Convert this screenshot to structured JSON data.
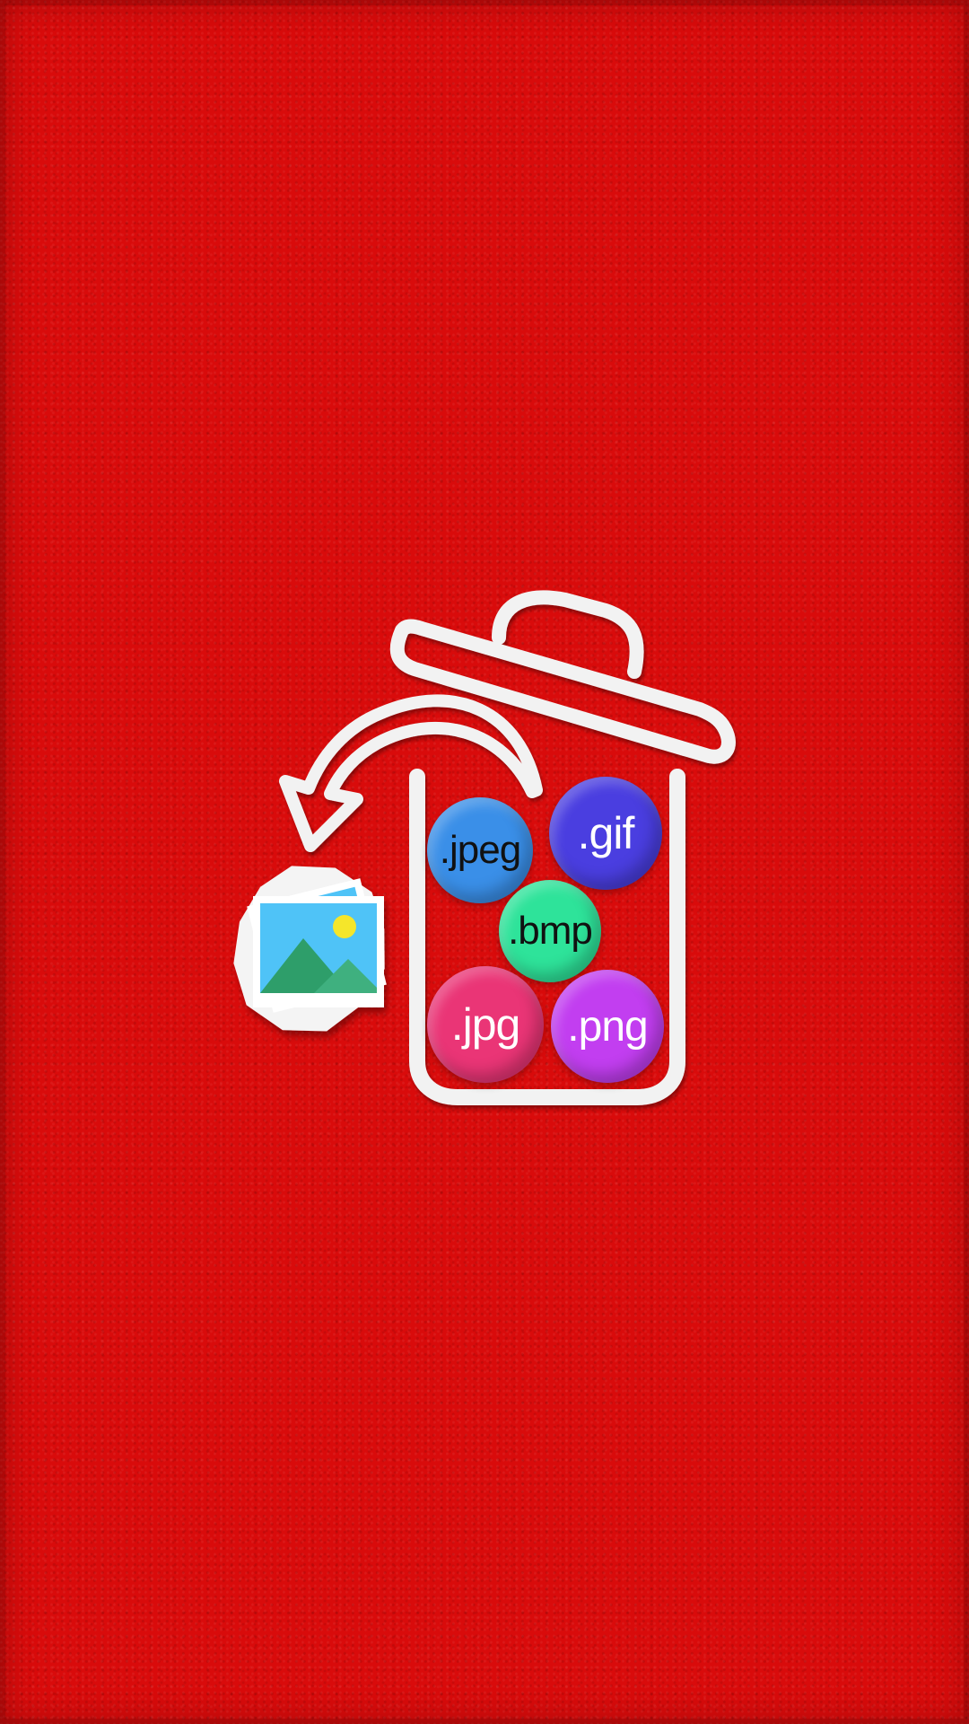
{
  "colors": {
    "background": "#d90b0b",
    "outline": "#f2f2f2",
    "image_sky": "#4fc3f7",
    "image_mountain": "#2e9e6a",
    "image_sun": "#f5e62a"
  },
  "icons": [
    "trash-bin-icon",
    "restore-arrow-icon",
    "photo-stack-icon"
  ],
  "file_types": [
    {
      "label": ".jpeg",
      "color": "#3a8fe8"
    },
    {
      "label": ".gif",
      "color": "#4a3ee0"
    },
    {
      "label": ".bmp",
      "color": "#2ee39a"
    },
    {
      "label": ".jpg",
      "color": "#ea3576"
    },
    {
      "label": ".png",
      "color": "#c23ef0"
    }
  ]
}
